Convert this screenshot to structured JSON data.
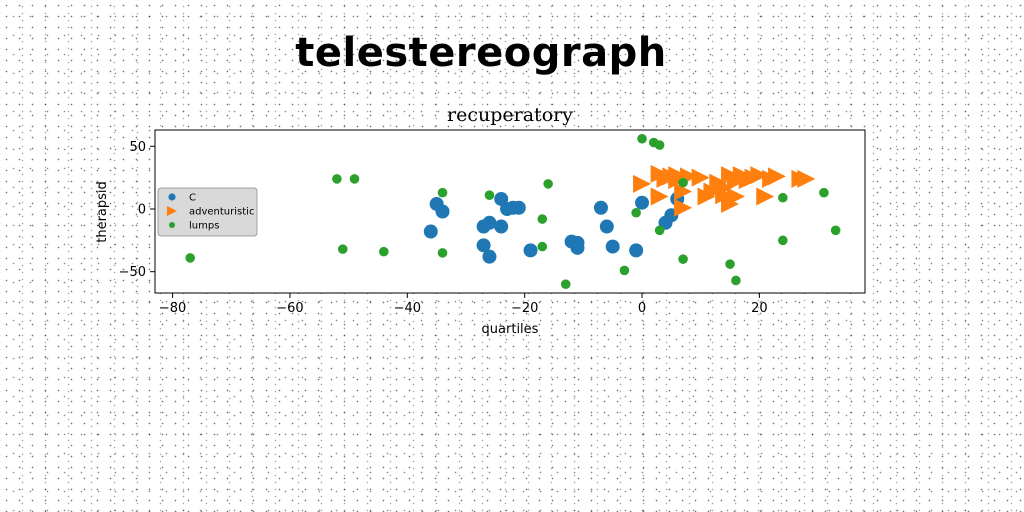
{
  "figure_title": "telestereograph",
  "chart_data": {
    "type": "scatter",
    "title": "recuperatory",
    "xlabel": "quartiles",
    "ylabel": "therapsid",
    "xlim": [
      -83,
      38
    ],
    "ylim": [
      -67,
      63
    ],
    "xticks": [
      -80,
      -60,
      -40,
      -20,
      0,
      20
    ],
    "xtick_labels": [
      "−80",
      "−60",
      "−40",
      "−20",
      "0",
      "20"
    ],
    "yticks": [
      -50,
      0,
      50
    ],
    "ytick_labels": [
      "−50",
      "0",
      "50"
    ],
    "grid": false,
    "legend_position": "center-left",
    "series": [
      {
        "name": "C",
        "marker": "circle",
        "color": "#1f77b4",
        "points": [
          [
            -35,
            4
          ],
          [
            -34,
            -2
          ],
          [
            -36,
            -18
          ],
          [
            -27,
            -14
          ],
          [
            -26,
            -11
          ],
          [
            -24,
            8
          ],
          [
            -24,
            -14
          ],
          [
            -23,
            0
          ],
          [
            -22,
            1
          ],
          [
            -21,
            1
          ],
          [
            -27,
            -29
          ],
          [
            -26,
            -38
          ],
          [
            -19,
            -33
          ],
          [
            -12,
            -26
          ],
          [
            -11,
            -27
          ],
          [
            -11,
            -31
          ],
          [
            -7,
            1
          ],
          [
            -6,
            -14
          ],
          [
            -5,
            -30
          ],
          [
            -1,
            -33
          ],
          [
            0,
            5
          ],
          [
            4,
            -11
          ],
          [
            5,
            -5
          ],
          [
            6,
            8
          ]
        ]
      },
      {
        "name": "adventuristic",
        "marker": "triangle-right",
        "color": "#ff7f0e",
        "points": [
          [
            0,
            20
          ],
          [
            3,
            28
          ],
          [
            3,
            10
          ],
          [
            4,
            24
          ],
          [
            5,
            26
          ],
          [
            6,
            27
          ],
          [
            6,
            23
          ],
          [
            7,
            1
          ],
          [
            7,
            14
          ],
          [
            8,
            26
          ],
          [
            10,
            25
          ],
          [
            11,
            10
          ],
          [
            12,
            14
          ],
          [
            13,
            21
          ],
          [
            14,
            17
          ],
          [
            14,
            11
          ],
          [
            15,
            4
          ],
          [
            15,
            27
          ],
          [
            16,
            22
          ],
          [
            16,
            10
          ],
          [
            17,
            27
          ],
          [
            18,
            23
          ],
          [
            19,
            25
          ],
          [
            20,
            27
          ],
          [
            21,
            10
          ],
          [
            22,
            24
          ],
          [
            23,
            26
          ],
          [
            27,
            24
          ],
          [
            28,
            24
          ]
        ]
      },
      {
        "name": "lumps",
        "marker": "circle-small",
        "color": "#2ca02c",
        "points": [
          [
            -77,
            -39
          ],
          [
            -52,
            24
          ],
          [
            -51,
            -32
          ],
          [
            -49,
            24
          ],
          [
            -44,
            -34
          ],
          [
            -34,
            -35
          ],
          [
            -34,
            13
          ],
          [
            -26,
            11
          ],
          [
            -17,
            -8
          ],
          [
            -17,
            -30
          ],
          [
            -16,
            20
          ],
          [
            -13,
            -60
          ],
          [
            -3,
            -49
          ],
          [
            -1,
            -3
          ],
          [
            0,
            56
          ],
          [
            2,
            53
          ],
          [
            3,
            51
          ],
          [
            3,
            -17
          ],
          [
            7,
            21
          ],
          [
            7,
            -40
          ],
          [
            15,
            -44
          ],
          [
            16,
            -57
          ],
          [
            24,
            9
          ],
          [
            24,
            -25
          ],
          [
            31,
            13
          ],
          [
            33,
            -17
          ]
        ]
      }
    ]
  }
}
